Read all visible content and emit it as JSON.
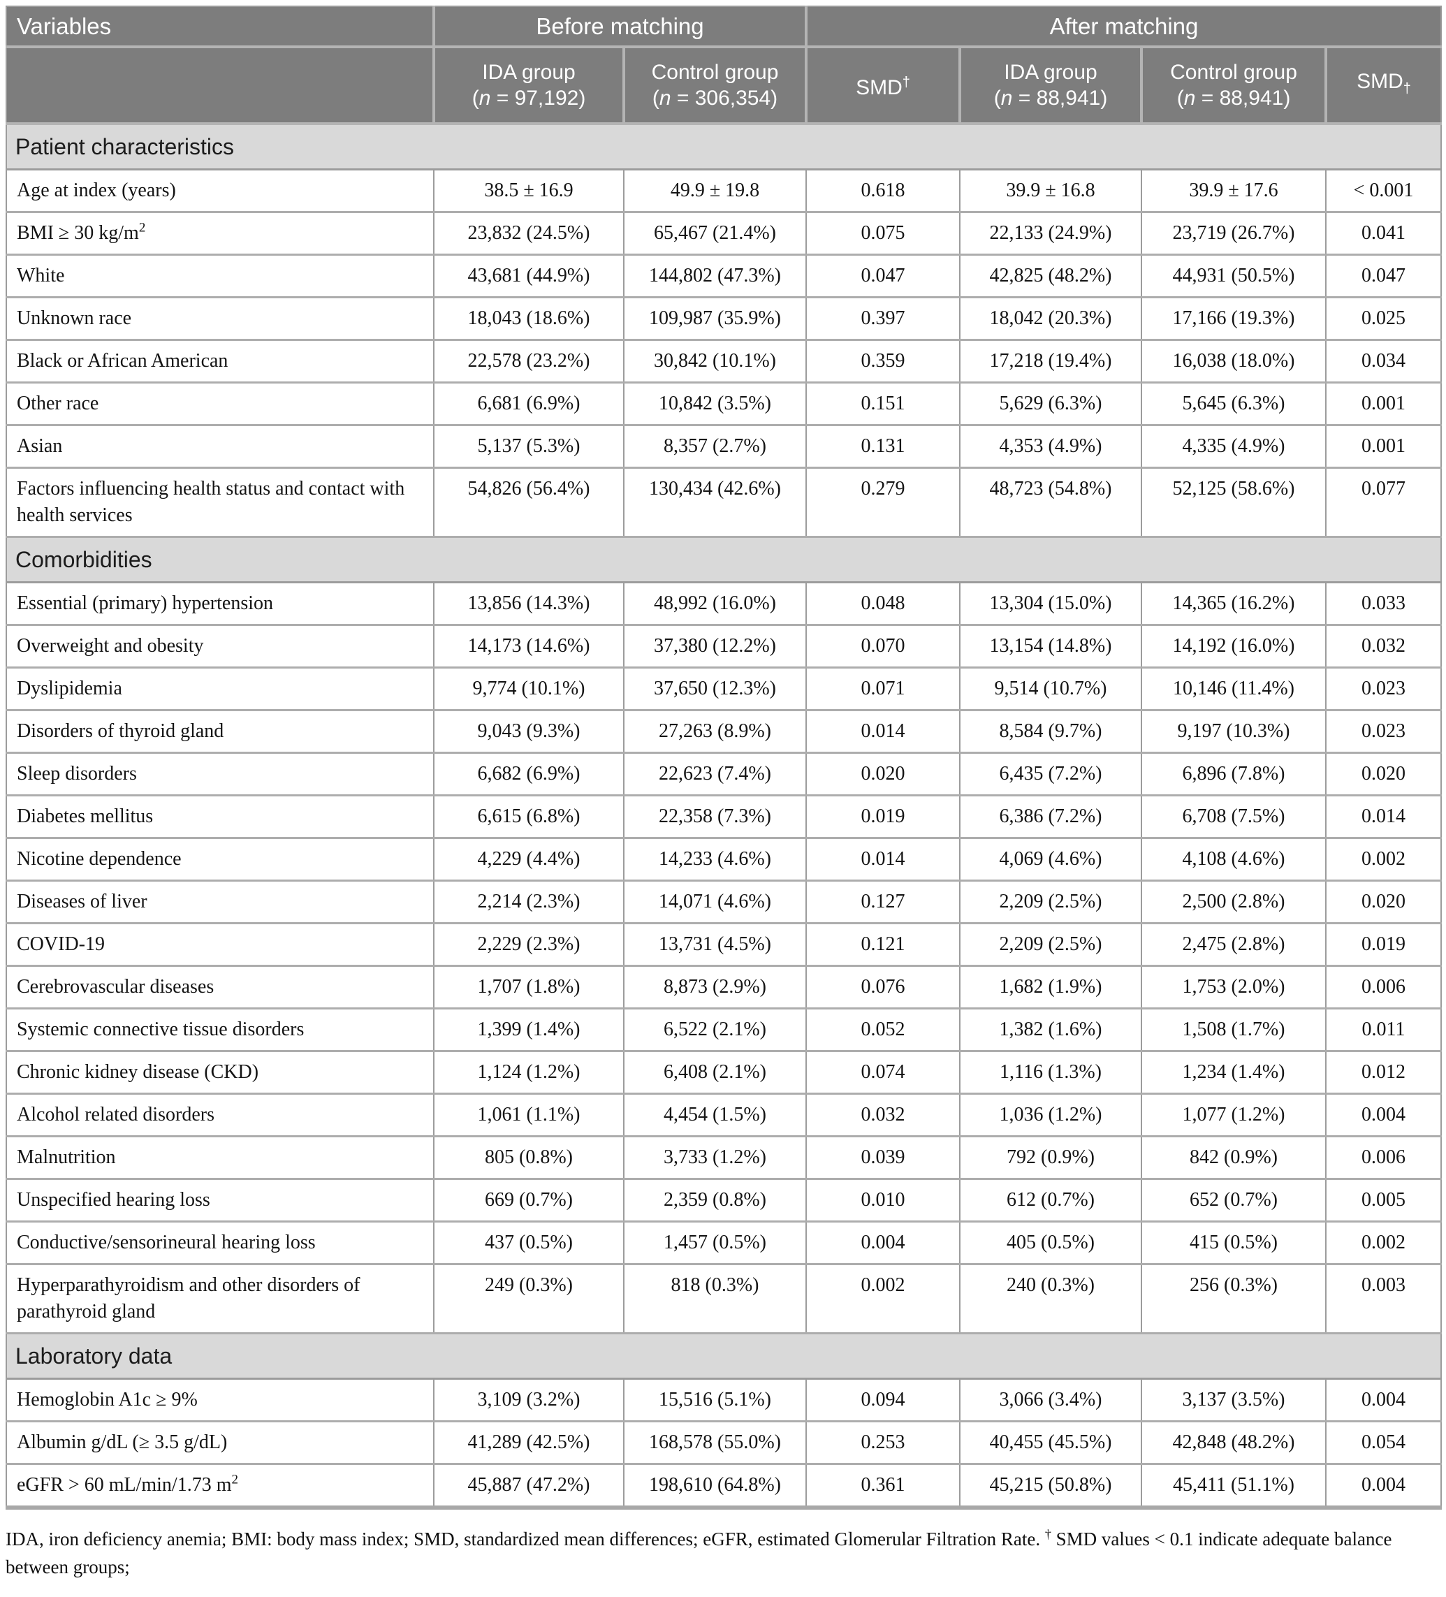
{
  "colors": {
    "header_bg": "#7d7d7d",
    "header_divider": "#b4b4b4",
    "header_text": "#ffffff",
    "section_bg": "#d9d9d9",
    "grid_line": "#9c9c9c",
    "row_divider": "#adadad",
    "bottom_bar": "#a8a8a8",
    "body_text": "#141414",
    "page_bg": "#ffffff"
  },
  "header": {
    "variables": "Variables",
    "before": "Before matching",
    "after": "After matching",
    "groups": [
      {
        "title": "IDA group",
        "n_open": "(",
        "n_char": "n",
        "n_rest": " = 97,192)"
      },
      {
        "title": "Control group",
        "n_open": "(",
        "n_char": "n",
        "n_rest": " = 306,354)"
      },
      {
        "title": "SMD",
        "mark": "†",
        "mark_pos": "sup"
      },
      {
        "title": "IDA group",
        "n_open": "(",
        "n_char": "n",
        "n_rest": " = 88,941)"
      },
      {
        "title": "Control group",
        "n_open": "(",
        "n_char": "n",
        "n_rest": " = 88,941)"
      },
      {
        "title": "SMD",
        "mark": "†",
        "mark_pos": "sub"
      }
    ]
  },
  "sections": [
    {
      "title": "Patient characteristics",
      "rows": [
        {
          "label": "Age at index (years)",
          "values": [
            "38.5 ± 16.9",
            "49.9 ± 19.8",
            "0.618",
            "39.9 ± 16.8",
            "39.9 ± 17.6",
            "< 0.001"
          ]
        },
        {
          "label": "BMI ≥ 30 kg/m",
          "sup": "2",
          "values": [
            "23,832 (24.5%)",
            "65,467 (21.4%)",
            "0.075",
            "22,133 (24.9%)",
            "23,719 (26.7%)",
            "0.041"
          ]
        },
        {
          "label": "White",
          "values": [
            "43,681 (44.9%)",
            "144,802 (47.3%)",
            "0.047",
            "42,825 (48.2%)",
            "44,931 (50.5%)",
            "0.047"
          ]
        },
        {
          "label": "Unknown race",
          "values": [
            "18,043 (18.6%)",
            "109,987 (35.9%)",
            "0.397",
            "18,042 (20.3%)",
            "17,166 (19.3%)",
            "0.025"
          ]
        },
        {
          "label": "Black or African American",
          "values": [
            "22,578 (23.2%)",
            "30,842 (10.1%)",
            "0.359",
            "17,218 (19.4%)",
            "16,038 (18.0%)",
            "0.034"
          ]
        },
        {
          "label": "Other race",
          "values": [
            "6,681 (6.9%)",
            "10,842 (3.5%)",
            "0.151",
            "5,629 (6.3%)",
            "5,645 (6.3%)",
            "0.001"
          ]
        },
        {
          "label": "Asian",
          "values": [
            "5,137 (5.3%)",
            "8,357 (2.7%)",
            "0.131",
            "4,353 (4.9%)",
            "4,335 (4.9%)",
            "0.001"
          ]
        },
        {
          "label": "Factors influencing health status and contact with health services",
          "values": [
            "54,826 (56.4%)",
            "130,434 (42.6%)",
            "0.279",
            "48,723 (54.8%)",
            "52,125 (58.6%)",
            "0.077"
          ]
        }
      ]
    },
    {
      "title": "Comorbidities",
      "rows": [
        {
          "label": "Essential (primary) hypertension",
          "values": [
            "13,856 (14.3%)",
            "48,992 (16.0%)",
            "0.048",
            "13,304 (15.0%)",
            "14,365 (16.2%)",
            "0.033"
          ]
        },
        {
          "label": "Overweight and obesity",
          "values": [
            "14,173 (14.6%)",
            "37,380 (12.2%)",
            "0.070",
            "13,154 (14.8%)",
            "14,192 (16.0%)",
            "0.032"
          ]
        },
        {
          "label": "Dyslipidemia",
          "values": [
            "9,774 (10.1%)",
            "37,650 (12.3%)",
            "0.071",
            "9,514 (10.7%)",
            "10,146 (11.4%)",
            "0.023"
          ]
        },
        {
          "label": "Disorders of thyroid gland",
          "values": [
            "9,043 (9.3%)",
            "27,263 (8.9%)",
            "0.014",
            "8,584 (9.7%)",
            "9,197 (10.3%)",
            "0.023"
          ]
        },
        {
          "label": "Sleep disorders",
          "values": [
            "6,682 (6.9%)",
            "22,623 (7.4%)",
            "0.020",
            "6,435 (7.2%)",
            "6,896 (7.8%)",
            "0.020"
          ]
        },
        {
          "label": "Diabetes mellitus",
          "values": [
            "6,615 (6.8%)",
            "22,358 (7.3%)",
            "0.019",
            "6,386 (7.2%)",
            "6,708 (7.5%)",
            "0.014"
          ]
        },
        {
          "label": "Nicotine dependence",
          "values": [
            "4,229 (4.4%)",
            "14,233 (4.6%)",
            "0.014",
            "4,069 (4.6%)",
            "4,108 (4.6%)",
            "0.002"
          ]
        },
        {
          "label": "Diseases of liver",
          "values": [
            "2,214 (2.3%)",
            "14,071 (4.6%)",
            "0.127",
            "2,209 (2.5%)",
            "2,500 (2.8%)",
            "0.020"
          ]
        },
        {
          "label": "COVID-19",
          "values": [
            "2,229 (2.3%)",
            "13,731 (4.5%)",
            "0.121",
            "2,209 (2.5%)",
            "2,475 (2.8%)",
            "0.019"
          ]
        },
        {
          "label": "Cerebrovascular diseases",
          "values": [
            "1,707 (1.8%)",
            "8,873 (2.9%)",
            "0.076",
            "1,682 (1.9%)",
            "1,753 (2.0%)",
            "0.006"
          ]
        },
        {
          "label": "Systemic connective tissue disorders",
          "values": [
            "1,399 (1.4%)",
            "6,522 (2.1%)",
            "0.052",
            "1,382 (1.6%)",
            "1,508 (1.7%)",
            "0.011"
          ]
        },
        {
          "label": "Chronic kidney disease (CKD)",
          "values": [
            "1,124 (1.2%)",
            "6,408 (2.1%)",
            "0.074",
            "1,116 (1.3%)",
            "1,234 (1.4%)",
            "0.012"
          ]
        },
        {
          "label": "Alcohol related disorders",
          "values": [
            "1,061 (1.1%)",
            "4,454 (1.5%)",
            "0.032",
            "1,036 (1.2%)",
            "1,077 (1.2%)",
            "0.004"
          ]
        },
        {
          "label": "Malnutrition",
          "values": [
            "805 (0.8%)",
            "3,733 (1.2%)",
            "0.039",
            "792 (0.9%)",
            "842 (0.9%)",
            "0.006"
          ]
        },
        {
          "label": "Unspecified hearing loss",
          "values": [
            "669 (0.7%)",
            "2,359 (0.8%)",
            "0.010",
            "612 (0.7%)",
            "652 (0.7%)",
            "0.005"
          ]
        },
        {
          "label": "Conductive/sensorineural hearing loss",
          "values": [
            "437 (0.5%)",
            "1,457 (0.5%)",
            "0.004",
            "405 (0.5%)",
            "415 (0.5%)",
            "0.002"
          ]
        },
        {
          "label": "Hyperparathyroidism and other disorders of parathyroid gland",
          "values": [
            "249 (0.3%)",
            "818 (0.3%)",
            "0.002",
            "240 (0.3%)",
            "256 (0.3%)",
            "0.003"
          ]
        }
      ]
    },
    {
      "title": "Laboratory data",
      "rows": [
        {
          "label": "Hemoglobin A1c ≥ 9%",
          "values": [
            "3,109 (3.2%)",
            "15,516 (5.1%)",
            "0.094",
            "3,066 (3.4%)",
            "3,137 (3.5%)",
            "0.004"
          ]
        },
        {
          "label": "Albumin g/dL (≥ 3.5 g/dL)",
          "values": [
            "41,289 (42.5%)",
            "168,578 (55.0%)",
            "0.253",
            "40,455 (45.5%)",
            "42,848 (48.2%)",
            "0.054"
          ]
        },
        {
          "label": "eGFR > 60 mL/min/1.73 m",
          "sup": "2",
          "values": [
            "45,887 (47.2%)",
            "198,610 (64.8%)",
            "0.361",
            "45,215 (50.8%)",
            "45,411 (51.1%)",
            "0.004"
          ]
        }
      ]
    }
  ],
  "footnote": {
    "part1": "IDA, iron deficiency anemia; BMI: body mass index; SMD, standardized mean differences; eGFR, estimated Glomerular Filtration Rate. ",
    "dagger": "†",
    "part2": " SMD values < 0.1 indicate adequate balance between groups;"
  }
}
